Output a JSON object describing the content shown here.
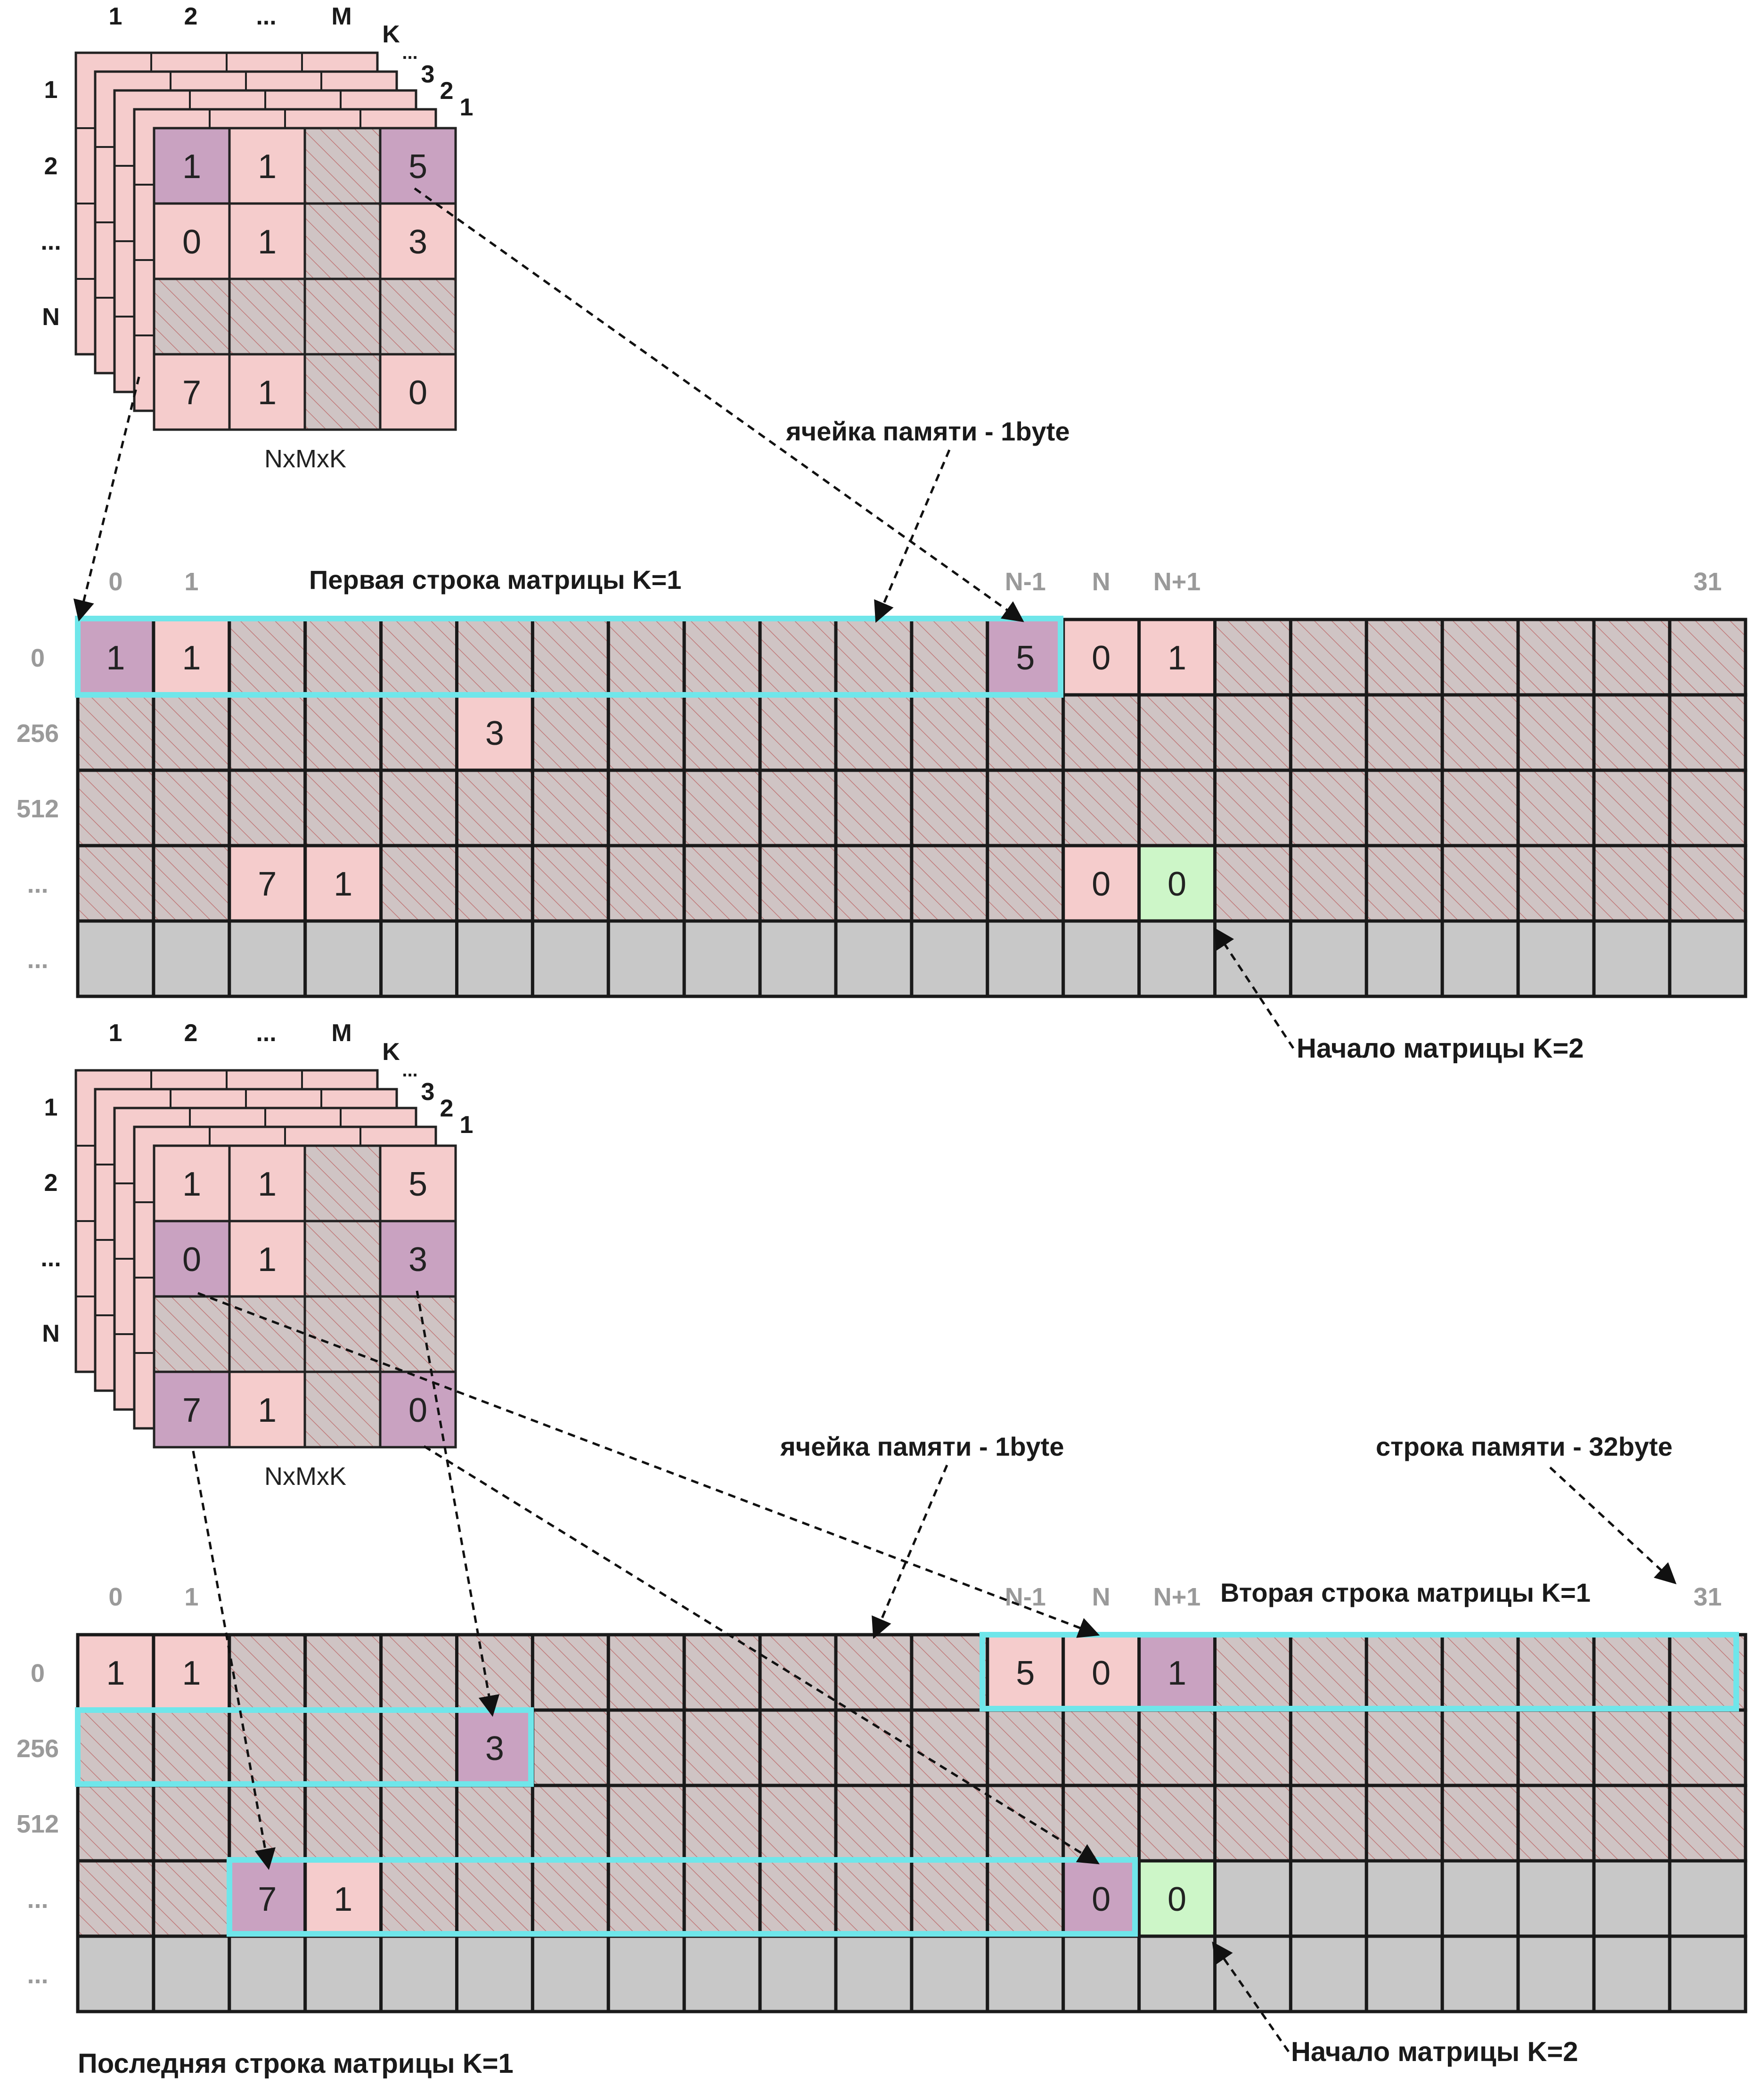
{
  "colors": {
    "pink": "#f5cccc",
    "purple": "#c9a2c1",
    "green": "#cdf6c8",
    "hatch_bg": "#cfc4c4",
    "hatch_line": "#c07a7a",
    "empty_gray": "#c8c8c8",
    "highlight": "#6fe6ea"
  },
  "diagrams": [
    {
      "cube": {
        "col_labels": [
          "1",
          "2",
          "...",
          "M"
        ],
        "k_label": "K",
        "depth_labels": [
          "...",
          "3",
          "2",
          "1"
        ],
        "row_labels": [
          "1",
          "2",
          "...",
          "N"
        ],
        "caption": "NxMxK",
        "cells": [
          [
            {
              "v": "1",
              "s": "purple"
            },
            {
              "v": "1",
              "s": "pink"
            },
            {
              "v": "",
              "s": "hatch"
            },
            {
              "v": "5",
              "s": "purple"
            }
          ],
          [
            {
              "v": "0",
              "s": "pink"
            },
            {
              "v": "1",
              "s": "pink"
            },
            {
              "v": "",
              "s": "hatch"
            },
            {
              "v": "3",
              "s": "pink"
            }
          ],
          [
            {
              "v": "",
              "s": "hatch"
            },
            {
              "v": "",
              "s": "hatch"
            },
            {
              "v": "",
              "s": "hatch"
            },
            {
              "v": "",
              "s": "hatch"
            }
          ],
          [
            {
              "v": "7",
              "s": "pink"
            },
            {
              "v": "1",
              "s": "pink"
            },
            {
              "v": "",
              "s": "hatch"
            },
            {
              "v": "0",
              "s": "pink"
            }
          ]
        ]
      },
      "annotations": {
        "mem_cell": "ячейка памяти - 1byte",
        "row_title": "Первая строка матрицы K=1",
        "start_k2": "Начало матрицы K=2"
      },
      "col_labels": [
        {
          "col": 0,
          "text": "0"
        },
        {
          "col": 1,
          "text": "1"
        },
        {
          "col": 12,
          "text": "N-1"
        },
        {
          "col": 13,
          "text": "N"
        },
        {
          "col": 14,
          "text": "N+1"
        },
        {
          "col": 21,
          "text": "31"
        }
      ],
      "row_labels": [
        "0",
        "256",
        "512",
        "...",
        "..."
      ],
      "hatched_rows": [
        0,
        1,
        2,
        3
      ],
      "filled": [
        {
          "r": 0,
          "c": 0,
          "v": "1",
          "s": "purple"
        },
        {
          "r": 0,
          "c": 1,
          "v": "1",
          "s": "pink"
        },
        {
          "r": 0,
          "c": 12,
          "v": "5",
          "s": "purple"
        },
        {
          "r": 0,
          "c": 13,
          "v": "0",
          "s": "pink"
        },
        {
          "r": 0,
          "c": 14,
          "v": "1",
          "s": "pink"
        },
        {
          "r": 1,
          "c": 5,
          "v": "3",
          "s": "pink"
        },
        {
          "r": 3,
          "c": 2,
          "v": "7",
          "s": "pink"
        },
        {
          "r": 3,
          "c": 3,
          "v": "1",
          "s": "pink"
        },
        {
          "r": 3,
          "c": 13,
          "v": "0",
          "s": "pink"
        },
        {
          "r": 3,
          "c": 14,
          "v": "0",
          "s": "green"
        }
      ]
    },
    {
      "cube": {
        "col_labels": [
          "1",
          "2",
          "...",
          "M"
        ],
        "k_label": "K",
        "depth_labels": [
          "...",
          "3",
          "2",
          "1"
        ],
        "row_labels": [
          "1",
          "2",
          "...",
          "N"
        ],
        "caption": "NxMxK",
        "cells": [
          [
            {
              "v": "1",
              "s": "pink"
            },
            {
              "v": "1",
              "s": "pink"
            },
            {
              "v": "",
              "s": "hatch"
            },
            {
              "v": "5",
              "s": "pink"
            }
          ],
          [
            {
              "v": "0",
              "s": "purple"
            },
            {
              "v": "1",
              "s": "pink"
            },
            {
              "v": "",
              "s": "hatch"
            },
            {
              "v": "3",
              "s": "purple"
            }
          ],
          [
            {
              "v": "",
              "s": "hatch"
            },
            {
              "v": "",
              "s": "hatch"
            },
            {
              "v": "",
              "s": "hatch"
            },
            {
              "v": "",
              "s": "hatch"
            }
          ],
          [
            {
              "v": "7",
              "s": "purple"
            },
            {
              "v": "1",
              "s": "pink"
            },
            {
              "v": "",
              "s": "hatch"
            },
            {
              "v": "0",
              "s": "purple"
            }
          ]
        ]
      },
      "annotations": {
        "mem_cell": "ячейка памяти - 1byte",
        "mem_row": "строка памяти - 32byte",
        "row_title": "Вторая строка матрицы K=1",
        "last_row": "Последняя строка матрицы K=1",
        "start_k2": "Начало матрицы K=2"
      },
      "col_labels": [
        {
          "col": 0,
          "text": "0"
        },
        {
          "col": 1,
          "text": "1"
        },
        {
          "col": 12,
          "text": "N-1"
        },
        {
          "col": 13,
          "text": "N"
        },
        {
          "col": 14,
          "text": "N+1"
        },
        {
          "col": 21,
          "text": "31"
        }
      ],
      "row_labels": [
        "0",
        "256",
        "512",
        "...",
        "..."
      ],
      "hatched_rows": [
        0,
        1,
        2
      ],
      "hatched_extra": [
        {
          "r": 3,
          "from": 0,
          "to": 14
        }
      ],
      "filled": [
        {
          "r": 0,
          "c": 0,
          "v": "1",
          "s": "pink"
        },
        {
          "r": 0,
          "c": 1,
          "v": "1",
          "s": "pink"
        },
        {
          "r": 0,
          "c": 12,
          "v": "5",
          "s": "pink"
        },
        {
          "r": 0,
          "c": 13,
          "v": "0",
          "s": "pink"
        },
        {
          "r": 0,
          "c": 14,
          "v": "1",
          "s": "purple"
        },
        {
          "r": 1,
          "c": 5,
          "v": "3",
          "s": "purple"
        },
        {
          "r": 3,
          "c": 2,
          "v": "7",
          "s": "purple"
        },
        {
          "r": 3,
          "c": 3,
          "v": "1",
          "s": "pink"
        },
        {
          "r": 3,
          "c": 13,
          "v": "0",
          "s": "purple"
        },
        {
          "r": 3,
          "c": 14,
          "v": "0",
          "s": "green"
        }
      ]
    }
  ]
}
